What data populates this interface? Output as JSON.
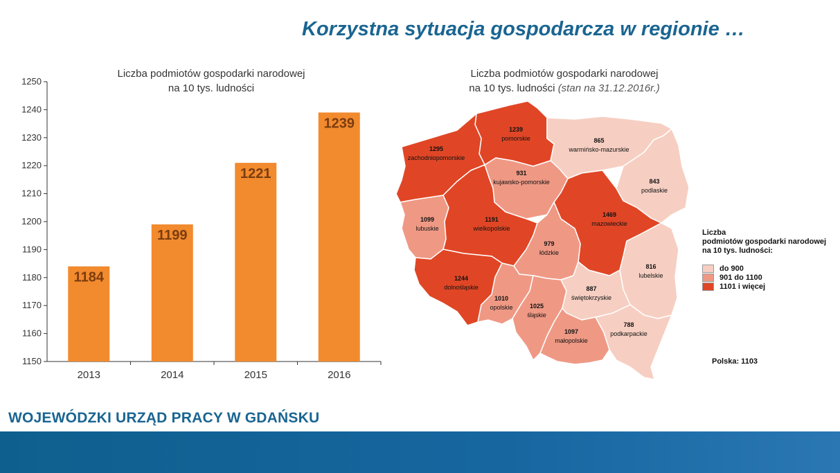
{
  "page_title": "Korzystna sytuacja gospodarcza w regionie …",
  "chart_data": [
    {
      "type": "bar",
      "title_line1": "Liczba podmiotów gospodarki narodowej",
      "title_line2": "na 10 tys. ludności",
      "categories": [
        "2013",
        "2014",
        "2015",
        "2016"
      ],
      "values": [
        1184,
        1199,
        1221,
        1239
      ],
      "ylim": [
        1150,
        1250
      ],
      "yticks": [
        "1150",
        "1160",
        "1170",
        "1180",
        "1190",
        "1200",
        "1210",
        "1220",
        "1230",
        "1240",
        "1250"
      ],
      "bar_color": "#f28a2e",
      "label_color": "#7a3d0f",
      "grid": false
    },
    {
      "type": "choropleth",
      "title_line1": "Liczba podmiotów gospodarki narodowej",
      "title_line2": "na 10 tys. ludności",
      "title_note": "(stan na 31.12.2016r.)",
      "regions": [
        {
          "name": "pomorskie",
          "value": "1239",
          "class": 3
        },
        {
          "name": "zachodniopomorskie",
          "value": "1295",
          "class": 3
        },
        {
          "name": "warmińsko-mazurskie",
          "value": "865",
          "class": 1
        },
        {
          "name": "kujawsko-pomorskie",
          "value": "931",
          "class": 2
        },
        {
          "name": "podlaskie",
          "value": "843",
          "class": 1
        },
        {
          "name": "lubuskie",
          "value": "1099",
          "class": 2
        },
        {
          "name": "wielkopolskie",
          "value": "1191",
          "class": 3
        },
        {
          "name": "mazowieckie",
          "value": "1469",
          "class": 3
        },
        {
          "name": "łódzkie",
          "value": "979",
          "class": 2
        },
        {
          "name": "lubelskie",
          "value": "816",
          "class": 1
        },
        {
          "name": "dolnośląskie",
          "value": "1244",
          "class": 3
        },
        {
          "name": "opolskie",
          "value": "1010",
          "class": 2
        },
        {
          "name": "śląskie",
          "value": "1025",
          "class": 2
        },
        {
          "name": "świętokrzyskie",
          "value": "887",
          "class": 1
        },
        {
          "name": "małopolskie",
          "value": "1097",
          "class": 2
        },
        {
          "name": "podkarpackie",
          "value": "788",
          "class": 1
        }
      ],
      "legend": {
        "title_line1": "Liczba",
        "title_line2": "podmiotów gospodarki narodowej",
        "title_line3": "na 10 tys. ludności:",
        "classes": [
          {
            "label": "do 900",
            "color": "#f6cfc2"
          },
          {
            "label": "901 do 1100",
            "color": "#ef9985"
          },
          {
            "label": "1101 i więcej",
            "color": "#e04626"
          }
        ]
      },
      "total_label": "Polska: 1103"
    }
  ],
  "footer": {
    "org_name": "WOJEWÓDZKI URZĄD PRACY W GDAŃSKU"
  }
}
